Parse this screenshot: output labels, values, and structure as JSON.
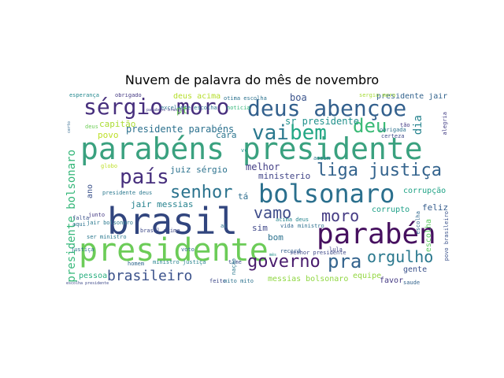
{
  "title": "Nuvem de palavra do mês de novembro",
  "words": [
    {
      "text": "parabéns presidente",
      "color": "#3aa17f"
    },
    {
      "text": "brasil",
      "color": "#31457e"
    },
    {
      "text": "presidente",
      "color": "#6ccc58"
    },
    {
      "text": "parabén",
      "color": "#46105f"
    },
    {
      "text": "bolsonaro",
      "color": "#2a6f8d"
    },
    {
      "text": "sérgio moro",
      "color": "#472f7d"
    },
    {
      "text": "deus abençoe",
      "color": "#33608d"
    },
    {
      "text": "país",
      "color": "#472f7d"
    },
    {
      "text": "vai",
      "color": "#2a788e"
    },
    {
      "text": "bem",
      "color": "#22a785"
    },
    {
      "text": "deu",
      "color": "#3aba76"
    },
    {
      "text": "liga justiça",
      "color": "#33638d"
    },
    {
      "text": "senhor",
      "color": "#2b738e"
    },
    {
      "text": "vamo",
      "color": "#3e4c8a"
    },
    {
      "text": "moro",
      "color": "#443a83"
    },
    {
      "text": "governo",
      "color": "#481a6c"
    },
    {
      "text": "pra",
      "color": "#33638d"
    },
    {
      "text": "orgulho",
      "color": "#2a788e"
    },
    {
      "text": "brasileiro",
      "color": "#3b528b"
    },
    {
      "text": "dia",
      "color": "#25838e"
    },
    {
      "text": "presidente bolsonaro",
      "color": "#35b779"
    },
    {
      "text": "sr presidente",
      "color": "#21918c"
    },
    {
      "text": "presidente parabéns",
      "color": "#2c718e"
    },
    {
      "text": "capitão",
      "color": "#aadc32"
    },
    {
      "text": "povo",
      "color": "#bddf26"
    },
    {
      "text": "cara",
      "color": "#2b758e"
    },
    {
      "text": "boa",
      "color": "#3a538b"
    },
    {
      "text": "melhor",
      "color": "#433e85"
    },
    {
      "text": "ministerio",
      "color": "#414487"
    },
    {
      "text": "juiz sérgio",
      "color": "#2c728e"
    },
    {
      "text": "jair messias",
      "color": "#26828e"
    },
    {
      "text": "corrupção",
      "color": "#20a386"
    },
    {
      "text": "corrupto",
      "color": "#1fa088"
    },
    {
      "text": "feliz",
      "color": "#365d8d"
    },
    {
      "text": "escolha",
      "color": "#5ec962"
    },
    {
      "text": "tá",
      "color": "#2e6e8e"
    },
    {
      "text": "sim",
      "color": "#3f4889"
    },
    {
      "text": "bom",
      "color": "#2c728e"
    },
    {
      "text": "equipe",
      "color": "#93d741"
    },
    {
      "text": "gente",
      "color": "#3b528b"
    },
    {
      "text": "favor",
      "color": "#443983"
    },
    {
      "text": "messias bolsonaro",
      "color": "#90d743"
    },
    {
      "text": "pessoa",
      "color": "#29af7f"
    },
    {
      "text": "deus acima",
      "color": "#b5de2b"
    },
    {
      "text": "presidente jair",
      "color": "#33638d"
    },
    {
      "text": "esperança",
      "color": "#23888e"
    },
    {
      "text": "obrigado",
      "color": "#443983"
    },
    {
      "text": "excelente escolha",
      "color": "#2b758e"
    },
    {
      "text": "pt",
      "color": "#6ece58"
    },
    {
      "text": "ano",
      "color": "#3b528b"
    },
    {
      "text": "presidente deus",
      "color": "#2a788e"
    },
    {
      "text": "acima deus",
      "color": "#25848e"
    },
    {
      "text": "senhor presidente",
      "color": "#3e4989"
    },
    {
      "text": "record",
      "color": "#355f8d"
    },
    {
      "text": "vida",
      "color": "#31688e"
    },
    {
      "text": "ministro",
      "color": "#2d708e"
    },
    {
      "text": "obrigada",
      "color": "#2c728e"
    },
    {
      "text": "escolha",
      "color": "#31688e"
    },
    {
      "text": "ser ministro",
      "color": "#2a788e"
    },
    {
      "text": "junto",
      "color": "#443983"
    },
    {
      "text": "aqui",
      "color": "#2c728e"
    },
    {
      "text": "falta",
      "color": "#3b528b"
    },
    {
      "text": "certeza",
      "color": "#3e4989"
    },
    {
      "text": "assim",
      "color": "#2a788e"
    },
    {
      "text": "vc",
      "color": "#21918c"
    },
    {
      "text": "ai",
      "color": "#2c728e"
    },
    {
      "text": "povo brasileiro",
      "color": "#3b528b"
    },
    {
      "text": "alegria",
      "color": "#433e85"
    },
    {
      "text": "tão",
      "color": "#443983"
    },
    {
      "text": "voto",
      "color": "#31688e"
    },
    {
      "text": "time",
      "color": "#3b528b"
    },
    {
      "text": "jair bolsonaro",
      "color": "#2a788e"
    },
    {
      "text": "brasil acima",
      "color": "#3e4989"
    },
    {
      "text": "ministro justiça",
      "color": "#26828e"
    },
    {
      "text": "noticia",
      "color": "#35b779"
    },
    {
      "text": "otima escolha",
      "color": "#2c728e"
    },
    {
      "text": "sergio moro",
      "color": "#a5db36"
    },
    {
      "text": "globo",
      "color": "#bddf26"
    },
    {
      "text": "homem",
      "color": "#31688e"
    },
    {
      "text": "justiça",
      "color": "#2c728e"
    },
    {
      "text": "saude",
      "color": "#33638d"
    },
    {
      "text": "lula",
      "color": "#414487"
    },
    {
      "text": "feito",
      "color": "#3e4989"
    },
    {
      "text": "mito mito",
      "color": "#2c728e"
    },
    {
      "text": "nação",
      "color": "#2a788e"
    },
    {
      "text": "escolha presidente",
      "color": "#3e4989"
    },
    {
      "text": "parabéns brasil",
      "color": "#433e85"
    },
    {
      "text": "certo",
      "color": "#31688e"
    },
    {
      "text": "mês",
      "color": "#21918c"
    },
    {
      "text": "deus",
      "color": "#6ece58"
    }
  ]
}
